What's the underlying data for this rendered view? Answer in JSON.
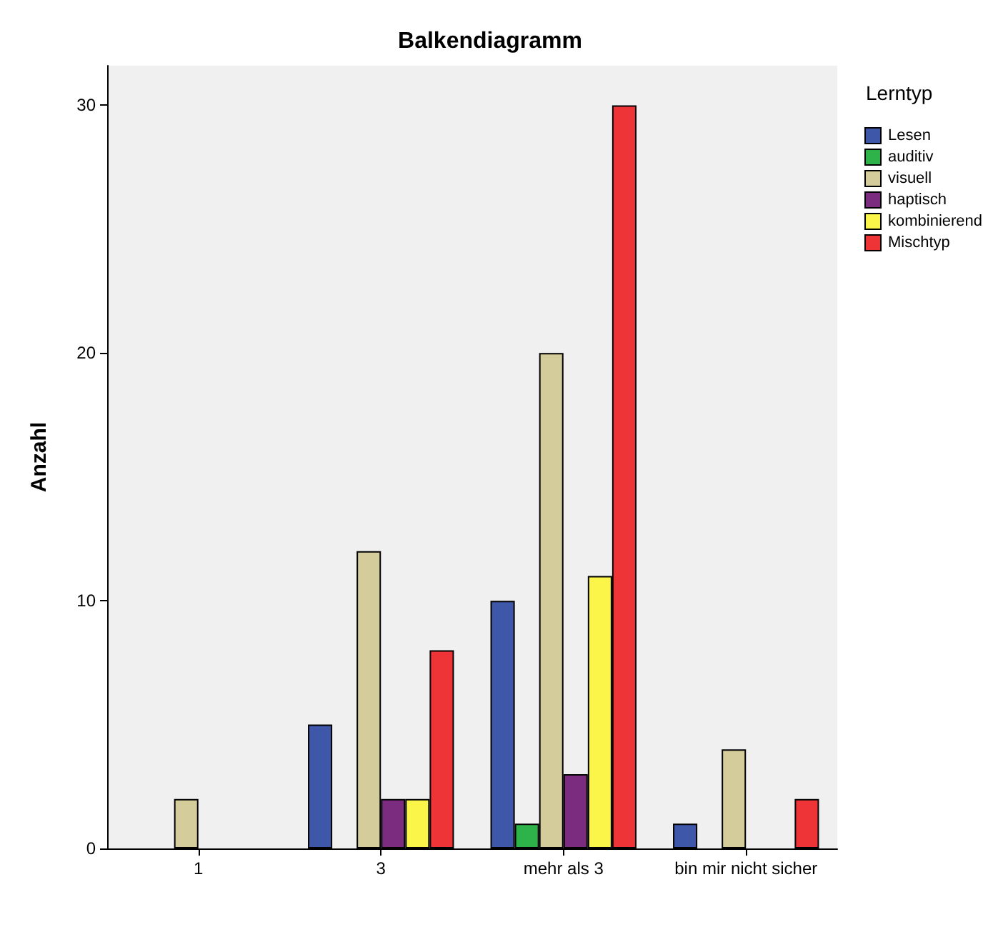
{
  "chart_data": {
    "type": "bar",
    "title": "Balkendiagramm",
    "ylabel": "Anzahl",
    "legend_title": "Lerntyp",
    "categories": [
      "1",
      "3",
      "mehr als 3",
      "bin mir nicht sicher"
    ],
    "series": [
      {
        "name": "Lesen",
        "color": "#3f57a8",
        "values": [
          null,
          5,
          10,
          1
        ]
      },
      {
        "name": "auditiv",
        "color": "#2db34a",
        "values": [
          null,
          null,
          1,
          null
        ]
      },
      {
        "name": "visuell",
        "color": "#d4cc9a",
        "values": [
          2,
          12,
          20,
          4
        ]
      },
      {
        "name": "haptisch",
        "color": "#7b2c7e",
        "values": [
          null,
          2,
          3,
          null
        ]
      },
      {
        "name": "kombinierend",
        "color": "#fbf54a",
        "values": [
          null,
          2,
          11,
          null
        ]
      },
      {
        "name": "Mischtyp",
        "color": "#ee3437",
        "values": [
          null,
          8,
          30,
          2
        ]
      }
    ],
    "ylim": [
      0,
      31.6
    ],
    "yticks": [
      0,
      10,
      20,
      30
    ],
    "grid": false,
    "legend": "right"
  }
}
